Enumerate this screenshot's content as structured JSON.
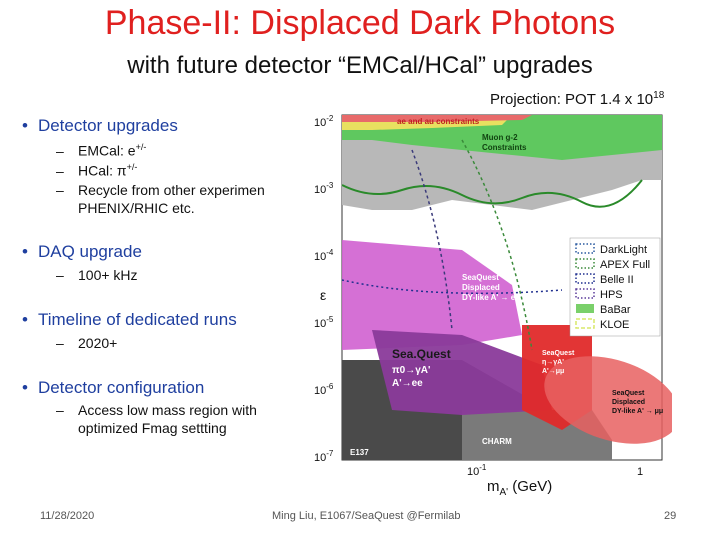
{
  "slide": {
    "title": "Phase-II: Displaced Dark Photons",
    "subtitle": "with future detector “EMCal/HCal” upgrades",
    "projection_label": "Projection: POT 1.4 x 10",
    "projection_exp": "18"
  },
  "bullets": [
    {
      "text": "Detector upgrades",
      "subs": [
        {
          "text": "EMCal: e",
          "sup": "+/-"
        },
        {
          "text": "HCal: π",
          "sup": "+/-"
        },
        {
          "text": "Recycle from other experimen",
          "sup": ""
        },
        {
          "text": "PHENIX/RHIC etc.",
          "sup": ""
        }
      ]
    },
    {
      "text": "DAQ upgrade",
      "subs": [
        {
          "text": "100+ kHz",
          "sup": ""
        }
      ]
    },
    {
      "text": "Timeline of dedicated runs",
      "subs": [
        {
          "text": "2020+",
          "sup": ""
        }
      ]
    },
    {
      "text": "Detector configuration",
      "subs": [
        {
          "text": "Access low mass region with",
          "sup": ""
        },
        {
          "text": "optimized Fmag settting",
          "sup": ""
        }
      ]
    }
  ],
  "plot": {
    "y_axis_label": "ε",
    "x_axis_label": "m",
    "x_axis_sub": "A'",
    "x_axis_unit": " (GeV)",
    "y_ticks": [
      "10",
      "10",
      "10",
      "10",
      "10",
      "10"
    ],
    "y_tick_exps": [
      "-2",
      "-3",
      "-4",
      "-5",
      "-6",
      "-7"
    ],
    "x_ticks": [
      "10",
      "1"
    ],
    "x_tick_exps": [
      "-1",
      ""
    ],
    "region_labels": {
      "ae_au": "ae and au constraints",
      "muon_g2_1": "Muon g-2",
      "muon_g2_2": "Constraints",
      "sq_disp_1": "SeaQuest",
      "sq_disp_2": "Displaced",
      "sq_disp_3": "DY-like A' → ee",
      "sq_big": "Sea.Quest",
      "sq_big_2": "π0→γA'",
      "sq_big_3": "A'→ee",
      "sq_mu_1": "SeaQuest",
      "sq_mu_2": "η→γA'",
      "sq_mu_3": "A'→μμ",
      "sq_dy_1": "SeaQuest",
      "sq_dy_2": "Displaced",
      "sq_dy_3": "DY-like A' → μμ",
      "charm": "CHARM",
      "e137": "E137"
    },
    "legend": [
      {
        "label": "DarkLight",
        "color": "#2a5aa0",
        "style": "dotted"
      },
      {
        "label": "APEX Full",
        "color": "#3a8a3a",
        "style": "dotted"
      },
      {
        "label": "Belle II",
        "color": "#1f2f8f",
        "style": "dotted"
      },
      {
        "label": "HPS",
        "color": "#5a3a9a",
        "style": "dotted"
      },
      {
        "label": "BaBar",
        "color": "#7ad06a",
        "style": "solid"
      },
      {
        "label": "KLOE",
        "color": "#d8e86a",
        "style": "dashed"
      }
    ]
  },
  "footer": {
    "date": "11/28/2020",
    "center": "Ming Liu, E1067/SeaQuest @Fermilab",
    "page": "29"
  }
}
